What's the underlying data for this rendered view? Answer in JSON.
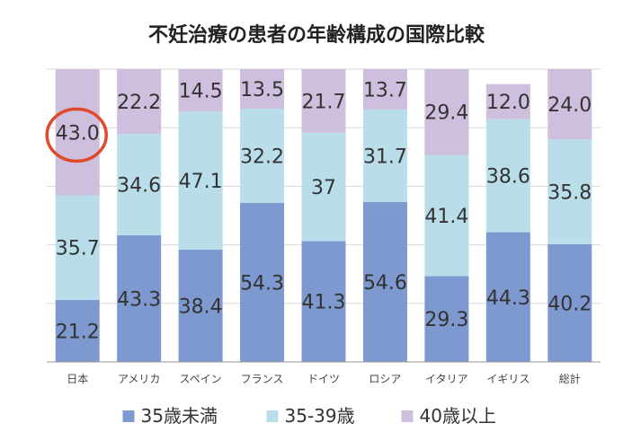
{
  "chart_data": {
    "type": "bar",
    "stacked": true,
    "percent_stacked": true,
    "title": "不妊治療の患者の年齢構成の国際比較",
    "categories": [
      "日本",
      "アメリカ",
      "スペイン",
      "フランス",
      "ドイツ",
      "ロシア",
      "イタリア",
      "イギリス",
      "総計"
    ],
    "series": [
      {
        "name": "35歳未満",
        "color": "#7d99cf",
        "values": [
          21.2,
          43.3,
          38.4,
          54.3,
          41.3,
          54.6,
          29.3,
          44.3,
          40.2
        ],
        "labels": [
          "21.2",
          "43.3",
          "38.4",
          "54.3",
          "41.3",
          "54.6",
          "29.3",
          "44.3",
          "40.2"
        ]
      },
      {
        "name": "35-39歳",
        "color": "#b9deea",
        "values": [
          35.7,
          34.6,
          47.1,
          32.2,
          37,
          31.7,
          41.4,
          38.6,
          35.8
        ],
        "labels": [
          "35.7",
          "34.6",
          "47.1",
          "32.2",
          "37",
          "31.7",
          "41.4",
          "38.6",
          "35.8"
        ]
      },
      {
        "name": "40歳以上",
        "color": "#cdbfdd",
        "values": [
          43.0,
          22.2,
          14.5,
          13.5,
          21.7,
          13.7,
          29.4,
          12.0,
          24.0
        ],
        "labels": [
          "43.0",
          "22.2",
          "14.5",
          "13.5",
          "21.7",
          "13.7",
          "29.4",
          "12.0",
          "24.0"
        ]
      }
    ],
    "ylim": [
      0,
      100
    ],
    "grid": true,
    "legend": "bottom",
    "highlight": {
      "category": "日本",
      "series": "40歳以上",
      "color": "#e04a2c"
    },
    "label_color": "#333333",
    "axis_color": "#9a9a9a",
    "grid_color": "#d9d9d9"
  }
}
